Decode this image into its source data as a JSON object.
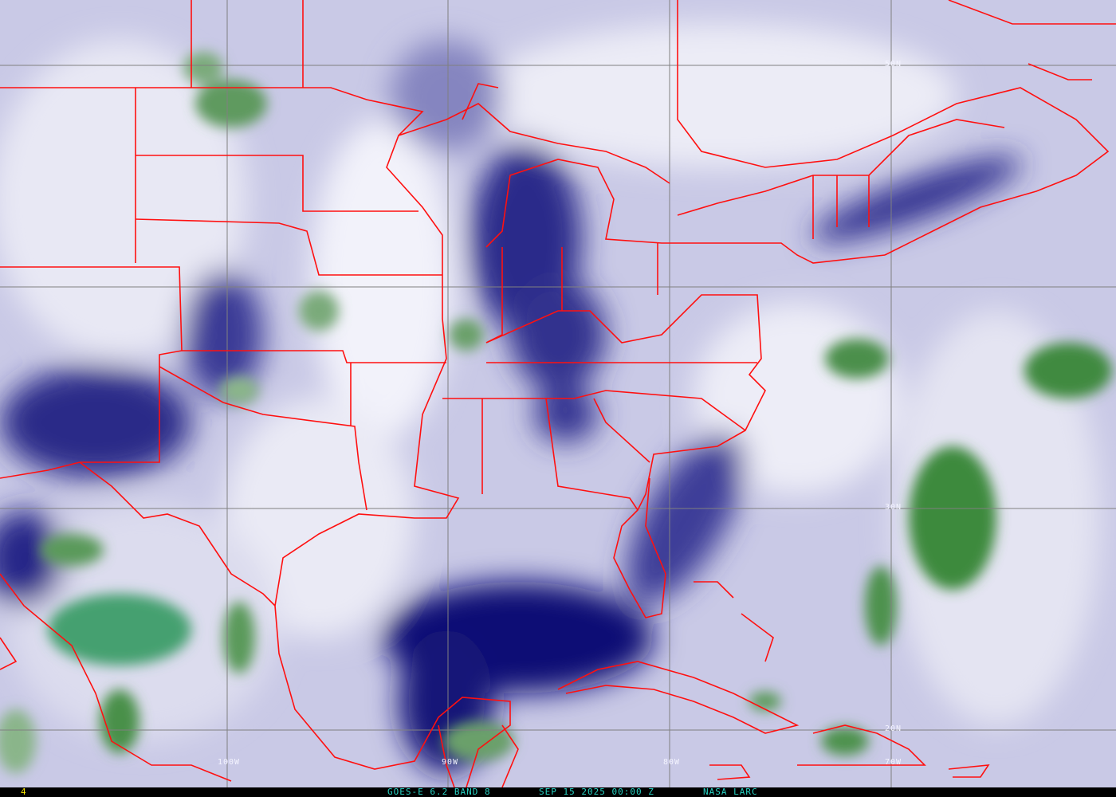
{
  "image": {
    "title": "GOES-E 6.2 BAND 8",
    "datetime": "SEP 15 2025 00:00 Z",
    "source": "NASA LARC",
    "frame_number": "4"
  },
  "grid_labels": {
    "lon": [
      "100W",
      "90W",
      "80W",
      "70W"
    ],
    "lat": [
      "50N",
      "30N",
      "20N"
    ]
  },
  "colors": {
    "background": "#c9c9e6",
    "dry_dark": "#14147a",
    "moist_white": "#f2f2fa",
    "cloud_green": "#3e8a3e",
    "borders": "#ff1010",
    "grid": "#808080",
    "footer_text": "#27d3c4",
    "frame_number": "#f5e400"
  }
}
